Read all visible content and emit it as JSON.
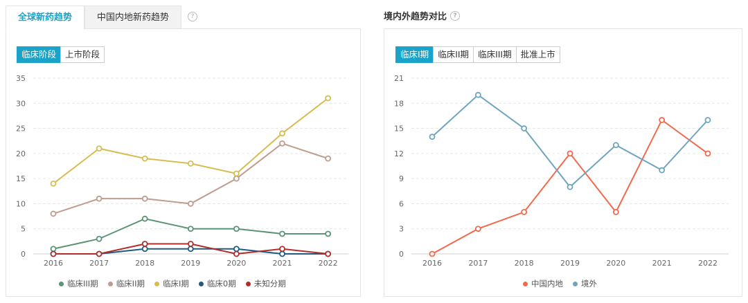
{
  "left": {
    "tabs": [
      {
        "label": "全球新药趋势",
        "active": true
      },
      {
        "label": "中国内地新药趋势",
        "active": false
      }
    ],
    "help": "?",
    "segments": [
      {
        "label": "临床阶段",
        "active": true
      },
      {
        "label": "上市阶段",
        "active": false
      }
    ]
  },
  "right": {
    "title": "境内外趋势对比",
    "help": "?",
    "segments": [
      {
        "label": "临床I期",
        "active": true
      },
      {
        "label": "临床II期",
        "active": false
      },
      {
        "label": "临床III期",
        "active": false
      },
      {
        "label": "批准上市",
        "active": false
      }
    ]
  },
  "chart_data": [
    {
      "type": "line",
      "x": [
        "2016",
        "2017",
        "2018",
        "2019",
        "2020",
        "2021",
        "2022"
      ],
      "ylim": [
        0,
        35
      ],
      "yticks": [
        "0",
        "5",
        "10",
        "15",
        "20",
        "25",
        "30",
        "35"
      ],
      "grid": true,
      "legend": "bottom",
      "series": [
        {
          "name": "临床III期",
          "color": "#5b9474",
          "values": [
            1,
            3,
            7,
            5,
            5,
            4,
            4
          ]
        },
        {
          "name": "临床II期",
          "color": "#bf9c8f",
          "values": [
            8,
            11,
            11,
            10,
            15,
            22,
            19
          ]
        },
        {
          "name": "临床I期",
          "color": "#d7bd4f",
          "values": [
            14,
            21,
            19,
            18,
            16,
            24,
            31
          ]
        },
        {
          "name": "临床0期",
          "color": "#1e5b7e",
          "values": [
            0,
            0,
            1,
            1,
            1,
            0,
            0
          ]
        },
        {
          "name": "未知分期",
          "color": "#b22c2c",
          "values": [
            0,
            0,
            2,
            2,
            0,
            1,
            0
          ]
        }
      ]
    },
    {
      "type": "line",
      "x": [
        "2016",
        "2017",
        "2018",
        "2019",
        "2020",
        "2021",
        "2022"
      ],
      "ylim": [
        0,
        21
      ],
      "yticks": [
        "0",
        "3",
        "6",
        "9",
        "12",
        "15",
        "18",
        "21"
      ],
      "grid": true,
      "legend": "bottom",
      "series": [
        {
          "name": "中国内地",
          "color": "#f2694c",
          "values": [
            0,
            3,
            5,
            12,
            5,
            16,
            12
          ]
        },
        {
          "name": "境外",
          "color": "#6fa4c0",
          "values": [
            14,
            19,
            15,
            8,
            13,
            10,
            16
          ]
        }
      ]
    }
  ]
}
